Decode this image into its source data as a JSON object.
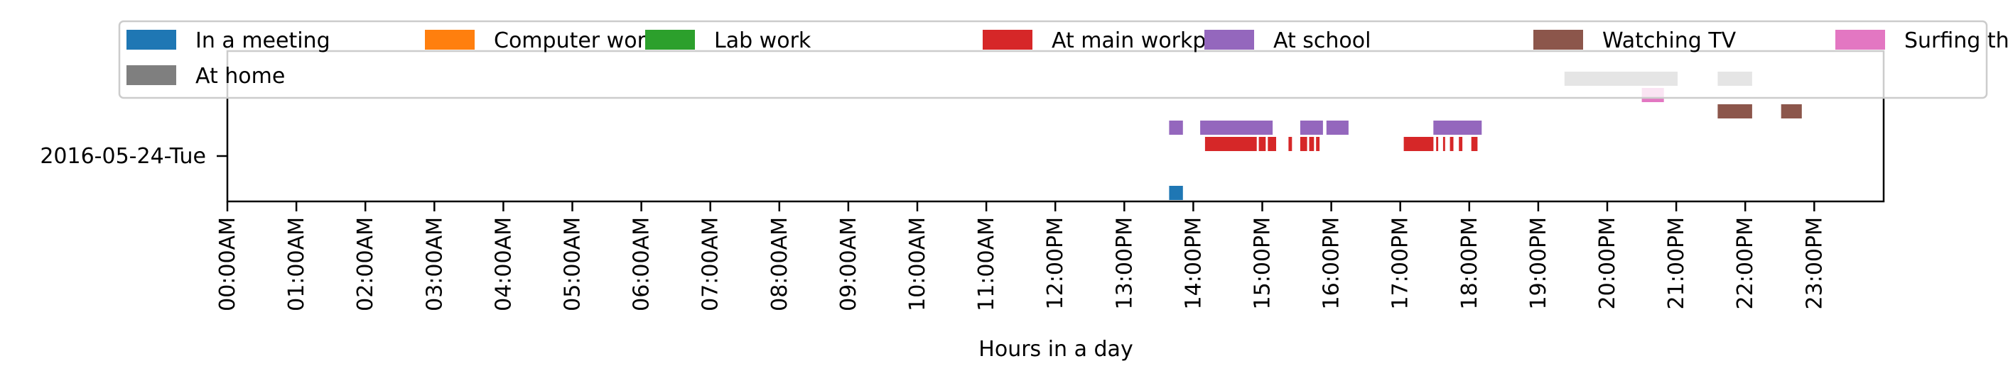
{
  "chart_data": {
    "type": "broken-barh timeline",
    "xlabel": "Hours in a day",
    "xlim_hours": [
      0,
      24
    ],
    "x_ticks": [
      "00:00AM",
      "01:00AM",
      "02:00AM",
      "03:00AM",
      "04:00AM",
      "05:00AM",
      "06:00AM",
      "07:00AM",
      "08:00AM",
      "09:00AM",
      "10:00AM",
      "11:00AM",
      "12:00PM",
      "13:00PM",
      "14:00PM",
      "15:00PM",
      "16:00PM",
      "17:00PM",
      "18:00PM",
      "19:00PM",
      "20:00PM",
      "21:00PM",
      "22:00PM",
      "23:00PM"
    ],
    "y_label_day": "2016-05-24-Tue",
    "legend_placement": "top (upper center), 7 columns",
    "grid": false,
    "series": [
      {
        "name": "In a meeting",
        "color": "#1f77b4",
        "lane": 0,
        "intervals": [
          [
            13.65,
            13.85
          ]
        ]
      },
      {
        "name": "Computer work",
        "color": "#ff7f0e",
        "lane": 1,
        "intervals": []
      },
      {
        "name": "Lab work",
        "color": "#2ca02c",
        "lane": 2,
        "intervals": []
      },
      {
        "name": "At main workplace",
        "color": "#d62728",
        "lane": 3,
        "intervals": [
          [
            14.17,
            14.92
          ],
          [
            14.95,
            15.05
          ],
          [
            15.08,
            15.2
          ],
          [
            15.38,
            15.43
          ],
          [
            15.55,
            15.65
          ],
          [
            15.68,
            15.75
          ],
          [
            15.78,
            15.83
          ],
          [
            17.05,
            17.48
          ],
          [
            17.52,
            17.55
          ],
          [
            17.62,
            17.65
          ],
          [
            17.72,
            17.77
          ],
          [
            17.85,
            17.9
          ],
          [
            18.03,
            18.12
          ]
        ]
      },
      {
        "name": "At school",
        "color": "#9467bd",
        "lane": 4,
        "intervals": [
          [
            13.65,
            13.85
          ],
          [
            14.1,
            15.15
          ],
          [
            15.55,
            15.88
          ],
          [
            15.93,
            16.25
          ],
          [
            17.48,
            18.18
          ]
        ]
      },
      {
        "name": "Watching TV",
        "color": "#8c564b",
        "lane": 5,
        "intervals": [
          [
            21.6,
            22.1
          ],
          [
            22.52,
            22.82
          ]
        ]
      },
      {
        "name": "Surfing the internet",
        "color": "#e377c2",
        "lane": 6,
        "intervals": [
          [
            20.5,
            20.82
          ]
        ]
      },
      {
        "name": "At home",
        "color": "#7f7f7f",
        "lane": 7,
        "intervals": [
          [
            19.38,
            21.02
          ],
          [
            21.6,
            22.1
          ]
        ]
      }
    ]
  }
}
